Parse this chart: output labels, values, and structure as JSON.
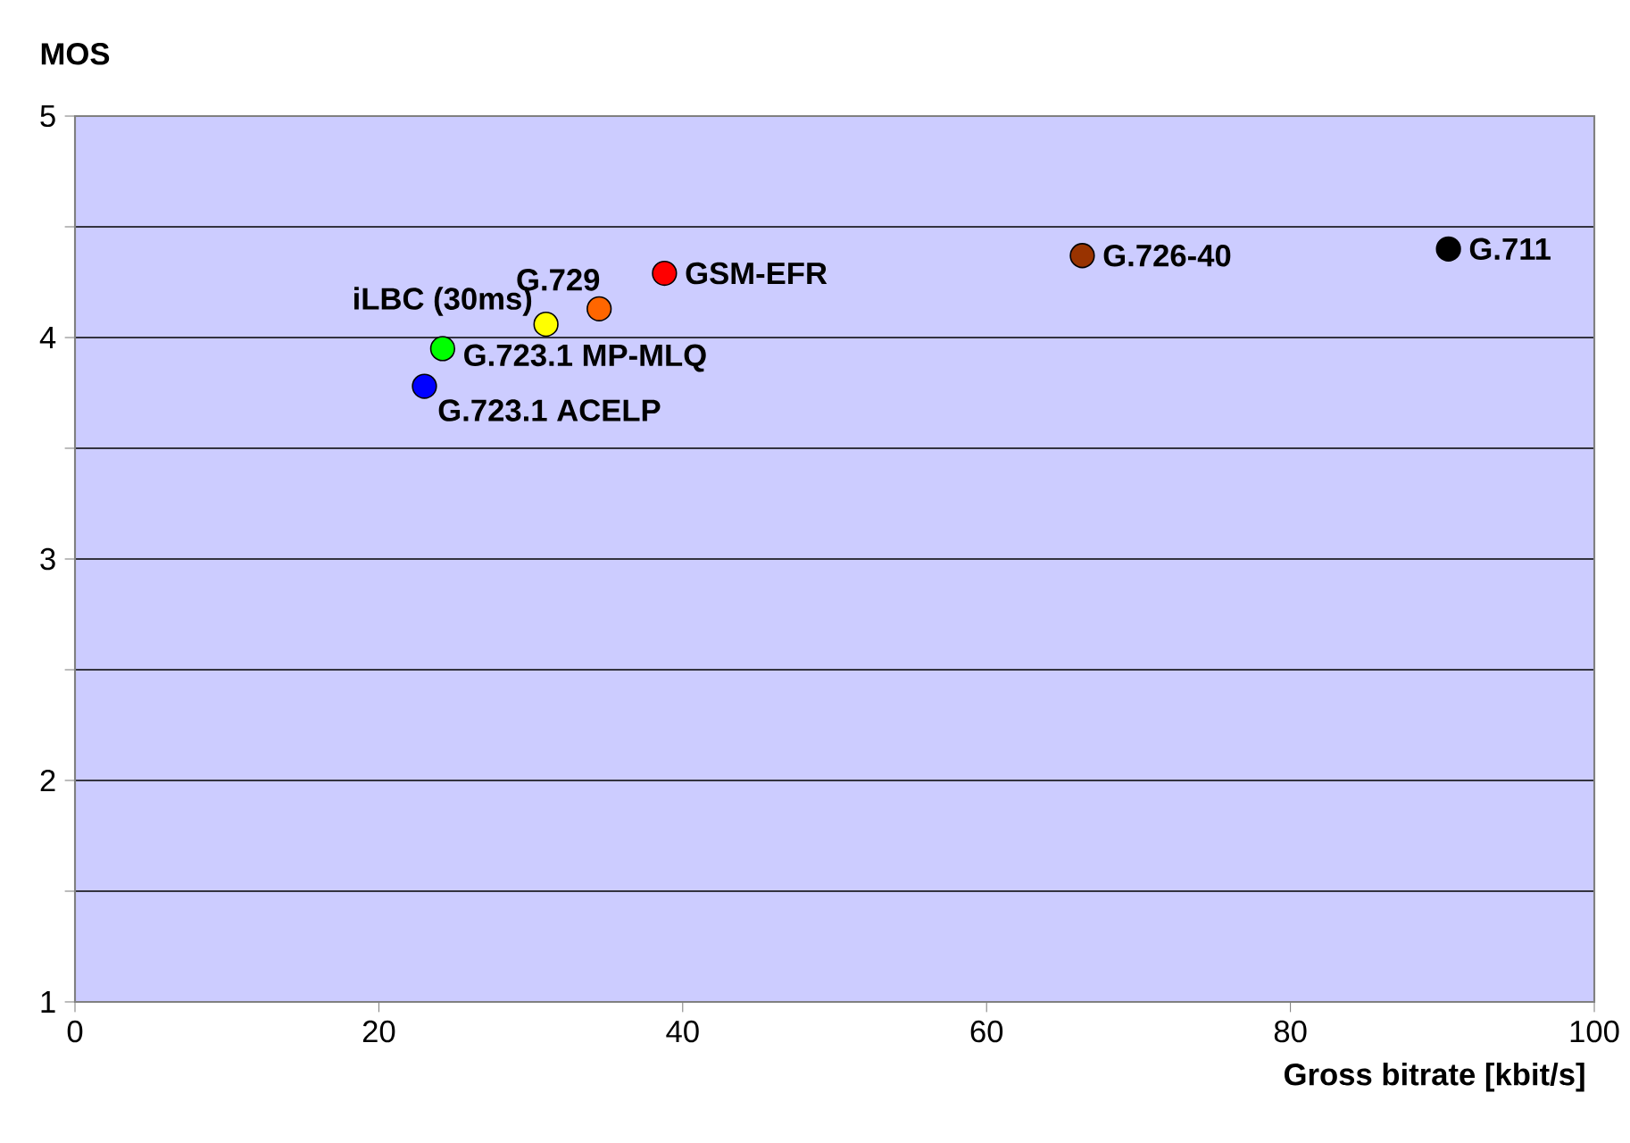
{
  "chart_data": {
    "type": "scatter",
    "xlabel": "Gross bitrate [kbit/s]",
    "ylabel": "MOS",
    "xlim": [
      0,
      100
    ],
    "xticks": [
      0,
      20,
      40,
      60,
      80,
      100
    ],
    "ylim": [
      1,
      5
    ],
    "yticks": [
      1,
      {
        "value": 1.5,
        "label": null
      },
      2,
      {
        "value": 2.5,
        "label": null
      },
      3,
      {
        "value": 3.5,
        "label": null
      },
      4,
      {
        "value": 4.5,
        "label": null
      },
      5
    ],
    "grid": "y",
    "marker": "circle",
    "series": [
      {
        "name": "G.711",
        "color": "#000000",
        "x": [
          90.4
        ],
        "values": [
          4.4
        ]
      },
      {
        "name": "G.726-40",
        "color": "#993300",
        "x": [
          66.3
        ],
        "values": [
          4.37
        ]
      },
      {
        "name": "GSM-EFR",
        "color": "#ff0000",
        "x": [
          38.8
        ],
        "values": [
          4.29
        ]
      },
      {
        "name": "G.729",
        "color": "#ff6600",
        "x": [
          34.5
        ],
        "values": [
          4.13
        ]
      },
      {
        "name": "iLBC (30ms)",
        "color": "#ffff00",
        "x": [
          31.0
        ],
        "values": [
          4.06
        ]
      },
      {
        "name": "G.723.1 MP-MLQ",
        "color": "#00ff00",
        "x": [
          24.2
        ],
        "values": [
          3.95
        ]
      },
      {
        "name": "G.723.1 ACELP",
        "color": "#0000ff",
        "x": [
          23.0
        ],
        "values": [
          3.78
        ]
      }
    ]
  }
}
